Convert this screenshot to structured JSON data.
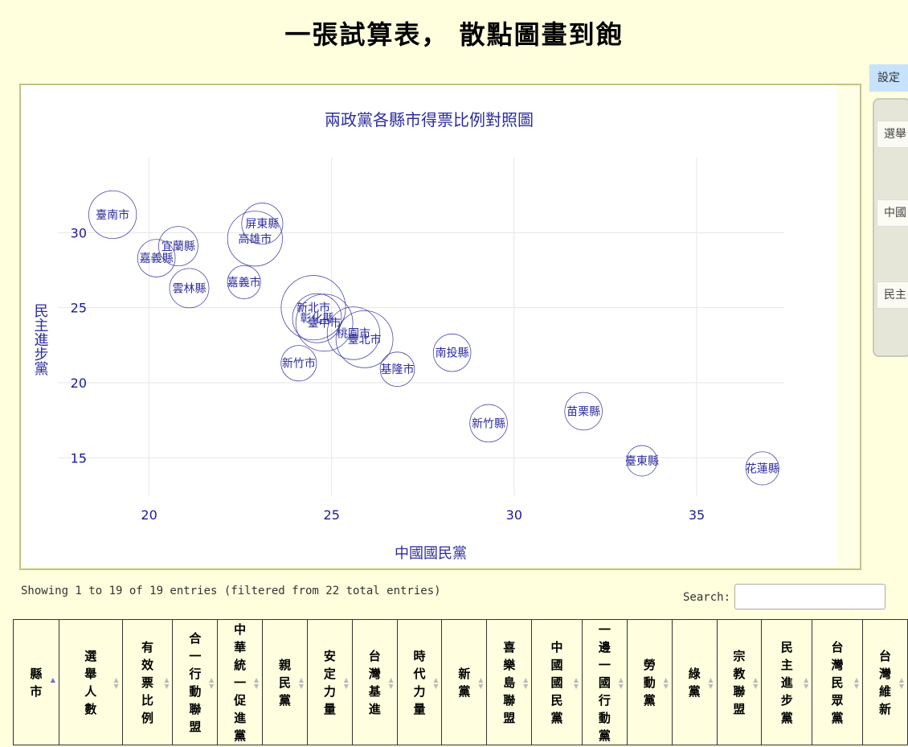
{
  "page": {
    "title": "一張試算表， 散點圖畫到飽"
  },
  "settings": {
    "tab_label": "設定",
    "fields": [
      "選舉",
      "中國",
      "民主"
    ]
  },
  "chart_data": {
    "type": "scatter",
    "title": "兩政黨各縣市得票比例對照圖",
    "xlabel": "中國國民黨",
    "ylabel": "民主進步黨",
    "xlim": [
      17.5,
      38.5
    ],
    "ylim": [
      12.5,
      35
    ],
    "x_ticks": [
      20,
      25,
      30,
      35
    ],
    "y_ticks": [
      15,
      20,
      25,
      30
    ],
    "grid": true,
    "colors": {
      "marker": "#2c2c9c",
      "text": "#2c2c9c",
      "grid": "#e6e6e6",
      "tick": "#1a1a99"
    },
    "points": [
      {
        "label": "臺南市",
        "x": 19.0,
        "y": 31.2,
        "size": 1.2
      },
      {
        "label": "屏東縣",
        "x": 23.1,
        "y": 30.6,
        "size": 0.75
      },
      {
        "label": "宜蘭縣",
        "x": 20.8,
        "y": 29.1,
        "size": 0.65
      },
      {
        "label": "高雄市",
        "x": 22.9,
        "y": 29.6,
        "size": 1.8
      },
      {
        "label": "嘉義縣",
        "x": 20.2,
        "y": 28.3,
        "size": 0.55
      },
      {
        "label": "嘉義市",
        "x": 22.6,
        "y": 26.7,
        "size": 0.35
      },
      {
        "label": "雲林縣",
        "x": 21.1,
        "y": 26.3,
        "size": 0.65
      },
      {
        "label": "新北市",
        "x": 24.5,
        "y": 25.0,
        "size": 2.8
      },
      {
        "label": "彰化縣",
        "x": 24.6,
        "y": 24.3,
        "size": 1.3
      },
      {
        "label": "臺中市",
        "x": 24.8,
        "y": 24.0,
        "size": 2.0
      },
      {
        "label": "桃園市",
        "x": 25.6,
        "y": 23.3,
        "size": 1.6
      },
      {
        "label": "臺北市",
        "x": 25.9,
        "y": 22.9,
        "size": 2.0
      },
      {
        "label": "南投縣",
        "x": 28.3,
        "y": 22.0,
        "size": 0.55
      },
      {
        "label": "新竹市",
        "x": 24.1,
        "y": 21.3,
        "size": 0.45
      },
      {
        "label": "基隆市",
        "x": 26.8,
        "y": 20.9,
        "size": 0.4
      },
      {
        "label": "新竹縣",
        "x": 29.3,
        "y": 17.3,
        "size": 0.55
      },
      {
        "label": "苗栗縣",
        "x": 31.9,
        "y": 18.1,
        "size": 0.55
      },
      {
        "label": "臺東縣",
        "x": 33.5,
        "y": 14.8,
        "size": 0.25
      },
      {
        "label": "花蓮縣",
        "x": 36.8,
        "y": 14.3,
        "size": 0.35
      }
    ]
  },
  "table": {
    "info": "Showing 1 to 19 of 19 entries (filtered from 22 total entries)",
    "search_label": "Search:",
    "search_value": "",
    "columns": [
      "縣市",
      "選舉人數",
      "有效票比例",
      "合一行動聯盟",
      "中華統一促進黨",
      "親民黨",
      "安定力量",
      "台灣基進",
      "時代力量",
      "新黨",
      "喜樂島聯盟",
      "中國國民黨",
      "一邊一國行動黨",
      "勞動黨",
      "綠黨",
      "宗教聯盟",
      "民主進步黨",
      "台灣民眾黨",
      "台灣維新"
    ],
    "sorted_column": "縣市"
  }
}
